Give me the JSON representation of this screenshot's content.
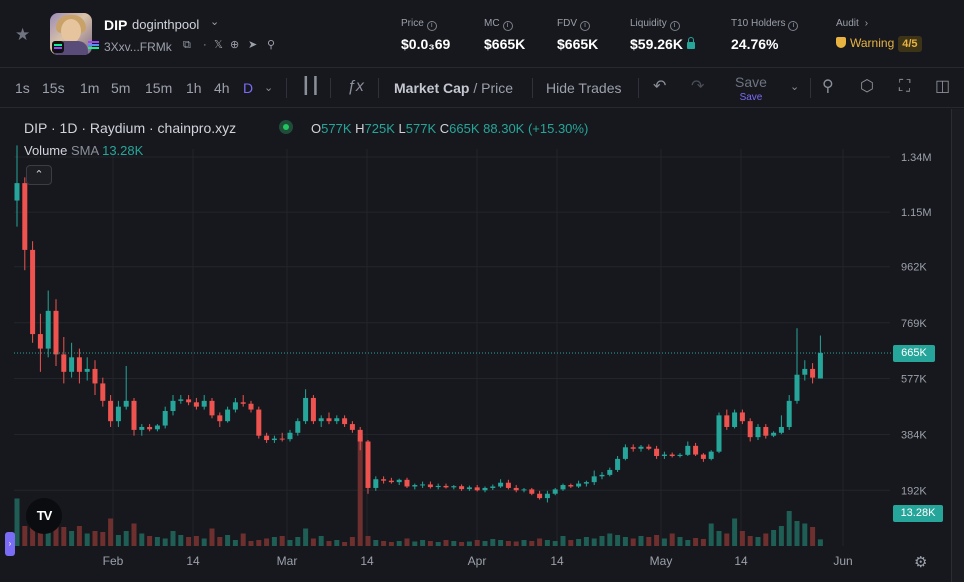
{
  "header": {
    "favorite_icon": "star-icon",
    "symbol": "DIP",
    "name": "doginthpool",
    "address": "3Xxv...FRMk",
    "icons": [
      "copy-icon",
      "dot-icon",
      "x-social-icon",
      "globe-icon",
      "telegram-icon",
      "search-icon"
    ],
    "stats": {
      "price": {
        "label": "Price",
        "value": "$0.0₃69"
      },
      "mc": {
        "label": "MC",
        "value": "$665K"
      },
      "fdv": {
        "label": "FDV",
        "value": "$665K"
      },
      "liquidity": {
        "label": "Liquidity",
        "value": "$59.26K"
      },
      "holders": {
        "label": "T10 Holders",
        "value": "24.76%"
      },
      "audit": {
        "label": "Audit",
        "status": "Warning",
        "score": "4/5"
      }
    }
  },
  "toolbar": {
    "timeframes": [
      "1s",
      "15s",
      "1m",
      "5m",
      "15m",
      "1h",
      "4h",
      "D"
    ],
    "active_timeframe": "D",
    "market_cap_label": "Market Cap",
    "price_label": "/ Price",
    "hide_trades_label": "Hide Trades",
    "save_label": "Save",
    "save_sub_label": "Save"
  },
  "legend": {
    "title": "DIP · 1D · Raydium · chainpro.xyz",
    "ohlc": {
      "o_key": "O",
      "o": "577K",
      "h_key": "H",
      "h": "725K",
      "l_key": "L",
      "l": "577K",
      "c_key": "C",
      "c": "665K",
      "change": "88.30K (+15.30%)"
    },
    "volume_label": "Volume",
    "volume_sma_label": "SMA",
    "volume_value": "13.28K",
    "logo_text": "TV"
  },
  "chart_data": {
    "type": "candlestick",
    "title": "DIP · 1D · Raydium · chainpro.xyz",
    "y_axis_ticks": [
      "1.34M",
      "1.15M",
      "962K",
      "769K",
      "577K",
      "384K",
      "192K"
    ],
    "y_axis_tick_values": [
      1340000,
      1150000,
      962000,
      769000,
      577000,
      384000,
      192000
    ],
    "x_axis_ticks": [
      "Feb",
      "14",
      "Mar",
      "14",
      "Apr",
      "14",
      "May",
      "14",
      "Jun"
    ],
    "ylim": [
      0,
      1500000
    ],
    "current_value_label": "665K",
    "current_value": 665000,
    "current_volume_label": "13.28K",
    "colors": {
      "up": "#26a69a",
      "down": "#ef5350",
      "volume_up": "#1e5e55",
      "volume_down": "#6e2f2f",
      "grid": "#22252b",
      "background": "#16181d"
    },
    "series": [
      {
        "name": "OHLC",
        "candles": [
          {
            "o": 1190000,
            "h": 1380000,
            "l": 1100000,
            "c": 1250000
          },
          {
            "o": 1250000,
            "h": 1270000,
            "l": 950000,
            "c": 1020000
          },
          {
            "o": 1020000,
            "h": 1050000,
            "l": 700000,
            "c": 730000
          },
          {
            "o": 730000,
            "h": 800000,
            "l": 600000,
            "c": 680000
          },
          {
            "o": 680000,
            "h": 880000,
            "l": 650000,
            "c": 810000
          },
          {
            "o": 810000,
            "h": 850000,
            "l": 620000,
            "c": 660000
          },
          {
            "o": 660000,
            "h": 720000,
            "l": 560000,
            "c": 600000
          },
          {
            "o": 600000,
            "h": 700000,
            "l": 580000,
            "c": 650000
          },
          {
            "o": 650000,
            "h": 680000,
            "l": 560000,
            "c": 600000
          },
          {
            "o": 600000,
            "h": 650000,
            "l": 570000,
            "c": 610000
          },
          {
            "o": 610000,
            "h": 640000,
            "l": 520000,
            "c": 560000
          },
          {
            "o": 560000,
            "h": 580000,
            "l": 480000,
            "c": 500000
          },
          {
            "o": 500000,
            "h": 520000,
            "l": 410000,
            "c": 430000
          },
          {
            "o": 430000,
            "h": 500000,
            "l": 410000,
            "c": 480000
          },
          {
            "o": 480000,
            "h": 620000,
            "l": 470000,
            "c": 500000
          },
          {
            "o": 500000,
            "h": 510000,
            "l": 380000,
            "c": 400000
          },
          {
            "o": 400000,
            "h": 420000,
            "l": 380000,
            "c": 410000
          },
          {
            "o": 410000,
            "h": 420000,
            "l": 395000,
            "c": 402000
          },
          {
            "o": 402000,
            "h": 420000,
            "l": 395000,
            "c": 415000
          },
          {
            "o": 415000,
            "h": 480000,
            "l": 405000,
            "c": 465000
          },
          {
            "o": 465000,
            "h": 520000,
            "l": 450000,
            "c": 500000
          },
          {
            "o": 500000,
            "h": 520000,
            "l": 490000,
            "c": 505000
          },
          {
            "o": 505000,
            "h": 520000,
            "l": 485000,
            "c": 495000
          },
          {
            "o": 495000,
            "h": 510000,
            "l": 470000,
            "c": 480000
          },
          {
            "o": 480000,
            "h": 520000,
            "l": 470000,
            "c": 500000
          },
          {
            "o": 500000,
            "h": 510000,
            "l": 440000,
            "c": 450000
          },
          {
            "o": 450000,
            "h": 460000,
            "l": 410000,
            "c": 430000
          },
          {
            "o": 430000,
            "h": 480000,
            "l": 425000,
            "c": 470000
          },
          {
            "o": 470000,
            "h": 510000,
            "l": 460000,
            "c": 495000
          },
          {
            "o": 495000,
            "h": 520000,
            "l": 480000,
            "c": 490000
          },
          {
            "o": 490000,
            "h": 500000,
            "l": 460000,
            "c": 470000
          },
          {
            "o": 470000,
            "h": 480000,
            "l": 370000,
            "c": 380000
          },
          {
            "o": 380000,
            "h": 390000,
            "l": 355000,
            "c": 365000
          },
          {
            "o": 365000,
            "h": 380000,
            "l": 355000,
            "c": 370000
          },
          {
            "o": 370000,
            "h": 390000,
            "l": 360000,
            "c": 368000
          },
          {
            "o": 368000,
            "h": 400000,
            "l": 360000,
            "c": 390000
          },
          {
            "o": 390000,
            "h": 440000,
            "l": 380000,
            "c": 430000
          },
          {
            "o": 430000,
            "h": 540000,
            "l": 420000,
            "c": 510000
          },
          {
            "o": 510000,
            "h": 520000,
            "l": 420000,
            "c": 430000
          },
          {
            "o": 430000,
            "h": 450000,
            "l": 410000,
            "c": 440000
          },
          {
            "o": 440000,
            "h": 460000,
            "l": 420000,
            "c": 430000
          },
          {
            "o": 430000,
            "h": 450000,
            "l": 420000,
            "c": 440000
          },
          {
            "o": 440000,
            "h": 450000,
            "l": 410000,
            "c": 420000
          },
          {
            "o": 420000,
            "h": 430000,
            "l": 390000,
            "c": 400000
          },
          {
            "o": 400000,
            "h": 410000,
            "l": 330000,
            "c": 360000
          },
          {
            "o": 360000,
            "h": 365000,
            "l": 180000,
            "c": 200000
          },
          {
            "o": 200000,
            "h": 240000,
            "l": 190000,
            "c": 230000
          },
          {
            "o": 230000,
            "h": 240000,
            "l": 215000,
            "c": 225000
          },
          {
            "o": 225000,
            "h": 235000,
            "l": 215000,
            "c": 220000
          },
          {
            "o": 220000,
            "h": 232000,
            "l": 210000,
            "c": 228000
          },
          {
            "o": 228000,
            "h": 235000,
            "l": 200000,
            "c": 205000
          },
          {
            "o": 205000,
            "h": 215000,
            "l": 195000,
            "c": 210000
          },
          {
            "o": 210000,
            "h": 222000,
            "l": 200000,
            "c": 212000
          },
          {
            "o": 212000,
            "h": 222000,
            "l": 198000,
            "c": 203000
          },
          {
            "o": 203000,
            "h": 215000,
            "l": 195000,
            "c": 207000
          },
          {
            "o": 207000,
            "h": 215000,
            "l": 198000,
            "c": 202000
          },
          {
            "o": 202000,
            "h": 210000,
            "l": 195000,
            "c": 206000
          },
          {
            "o": 206000,
            "h": 212000,
            "l": 190000,
            "c": 196000
          },
          {
            "o": 196000,
            "h": 208000,
            "l": 190000,
            "c": 202000
          },
          {
            "o": 202000,
            "h": 210000,
            "l": 188000,
            "c": 192000
          },
          {
            "o": 192000,
            "h": 205000,
            "l": 185000,
            "c": 200000
          },
          {
            "o": 200000,
            "h": 212000,
            "l": 193000,
            "c": 205000
          },
          {
            "o": 205000,
            "h": 230000,
            "l": 200000,
            "c": 218000
          },
          {
            "o": 218000,
            "h": 228000,
            "l": 195000,
            "c": 200000
          },
          {
            "o": 200000,
            "h": 210000,
            "l": 185000,
            "c": 192000
          },
          {
            "o": 192000,
            "h": 200000,
            "l": 185000,
            "c": 195000
          },
          {
            "o": 195000,
            "h": 200000,
            "l": 175000,
            "c": 180000
          },
          {
            "o": 180000,
            "h": 190000,
            "l": 160000,
            "c": 165000
          },
          {
            "o": 165000,
            "h": 190000,
            "l": 150000,
            "c": 180000
          },
          {
            "o": 180000,
            "h": 200000,
            "l": 175000,
            "c": 195000
          },
          {
            "o": 195000,
            "h": 215000,
            "l": 190000,
            "c": 210000
          },
          {
            "o": 210000,
            "h": 215000,
            "l": 200000,
            "c": 205000
          },
          {
            "o": 205000,
            "h": 225000,
            "l": 200000,
            "c": 215000
          },
          {
            "o": 215000,
            "h": 225000,
            "l": 205000,
            "c": 220000
          },
          {
            "o": 220000,
            "h": 260000,
            "l": 210000,
            "c": 240000
          },
          {
            "o": 240000,
            "h": 255000,
            "l": 230000,
            "c": 245000
          },
          {
            "o": 245000,
            "h": 270000,
            "l": 240000,
            "c": 262000
          },
          {
            "o": 262000,
            "h": 310000,
            "l": 255000,
            "c": 300000
          },
          {
            "o": 300000,
            "h": 350000,
            "l": 295000,
            "c": 340000
          },
          {
            "o": 340000,
            "h": 350000,
            "l": 325000,
            "c": 335000
          },
          {
            "o": 335000,
            "h": 348000,
            "l": 325000,
            "c": 342000
          },
          {
            "o": 342000,
            "h": 350000,
            "l": 330000,
            "c": 335000
          },
          {
            "o": 335000,
            "h": 345000,
            "l": 300000,
            "c": 310000
          },
          {
            "o": 310000,
            "h": 325000,
            "l": 300000,
            "c": 315000
          },
          {
            "o": 315000,
            "h": 322000,
            "l": 305000,
            "c": 310000
          },
          {
            "o": 310000,
            "h": 320000,
            "l": 305000,
            "c": 314000
          },
          {
            "o": 314000,
            "h": 360000,
            "l": 310000,
            "c": 345000
          },
          {
            "o": 345000,
            "h": 355000,
            "l": 310000,
            "c": 315000
          },
          {
            "o": 315000,
            "h": 320000,
            "l": 290000,
            "c": 300000
          },
          {
            "o": 300000,
            "h": 330000,
            "l": 295000,
            "c": 325000
          },
          {
            "o": 325000,
            "h": 460000,
            "l": 320000,
            "c": 450000
          },
          {
            "o": 450000,
            "h": 470000,
            "l": 400000,
            "c": 410000
          },
          {
            "o": 410000,
            "h": 470000,
            "l": 405000,
            "c": 460000
          },
          {
            "o": 460000,
            "h": 470000,
            "l": 420000,
            "c": 430000
          },
          {
            "o": 430000,
            "h": 440000,
            "l": 360000,
            "c": 375000
          },
          {
            "o": 375000,
            "h": 420000,
            "l": 365000,
            "c": 410000
          },
          {
            "o": 410000,
            "h": 420000,
            "l": 370000,
            "c": 380000
          },
          {
            "o": 380000,
            "h": 395000,
            "l": 375000,
            "c": 390000
          },
          {
            "o": 390000,
            "h": 450000,
            "l": 385000,
            "c": 410000
          },
          {
            "o": 410000,
            "h": 520000,
            "l": 400000,
            "c": 500000
          },
          {
            "o": 500000,
            "h": 750000,
            "l": 490000,
            "c": 590000
          },
          {
            "o": 590000,
            "h": 640000,
            "l": 570000,
            "c": 610000
          },
          {
            "o": 610000,
            "h": 630000,
            "l": 560000,
            "c": 580000
          },
          {
            "o": 577000,
            "h": 725000,
            "l": 577000,
            "c": 665000
          }
        ]
      },
      {
        "name": "Volume",
        "values": [
          95,
          40,
          50,
          35,
          40,
          55,
          38,
          30,
          40,
          25,
          30,
          28,
          55,
          22,
          30,
          45,
          25,
          20,
          18,
          15,
          30,
          22,
          18,
          20,
          15,
          35,
          18,
          22,
          12,
          25,
          10,
          12,
          15,
          18,
          20,
          12,
          18,
          35,
          15,
          20,
          10,
          12,
          8,
          18,
          220,
          20,
          12,
          10,
          8,
          10,
          15,
          9,
          12,
          10,
          8,
          12,
          10,
          8,
          9,
          12,
          10,
          14,
          12,
          10,
          9,
          12,
          10,
          15,
          12,
          10,
          20,
          12,
          14,
          18,
          15,
          20,
          25,
          22,
          18,
          15,
          20,
          18,
          22,
          15,
          25,
          18,
          12,
          16,
          14,
          45,
          30,
          25,
          55,
          30,
          20,
          18,
          25,
          32,
          40,
          70,
          50,
          45,
          38,
          13.28
        ]
      }
    ]
  }
}
